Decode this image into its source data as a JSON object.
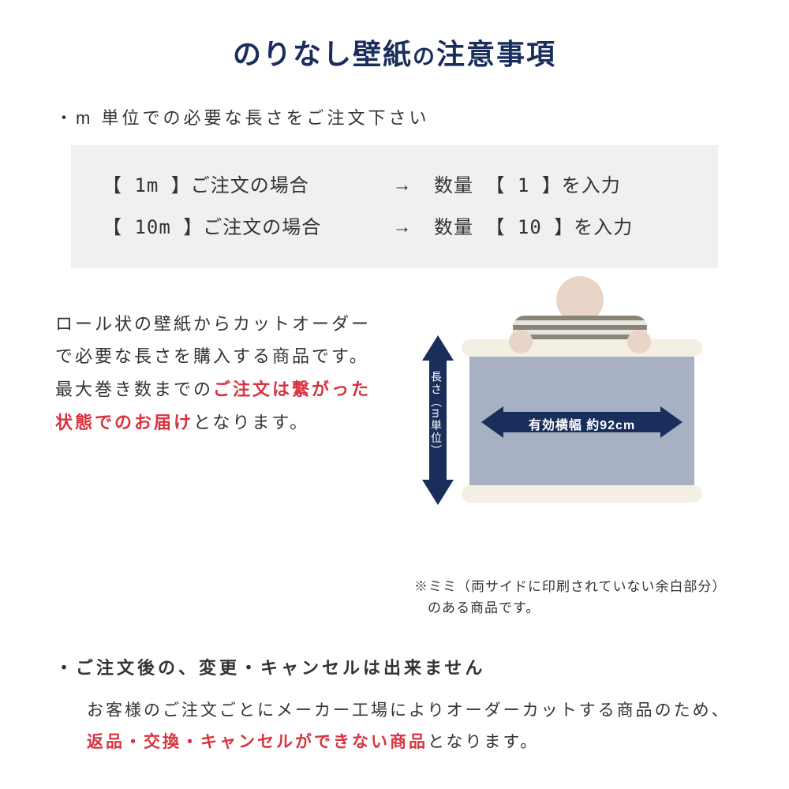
{
  "colors": {
    "title": "#1a2e5c",
    "text": "#333333",
    "accent_red": "#d9333f",
    "example_bg": "#f0f0f0",
    "arrow": "#1a2e5c",
    "arrow_text": "#ffffff",
    "wallpaper_sheet": "#a8b0c4",
    "roll": "#f4efe3"
  },
  "title": {
    "main": "のりなし壁紙",
    "connector": "の",
    "suffix": "注意事項"
  },
  "bullet1": "・m 単位での必要な長さをご注文下さい",
  "examples": [
    {
      "left": "【 1m 】ご注文の場合",
      "arrow": "→",
      "right": "数量 【 1 】を入力"
    },
    {
      "left": "【 10m 】ご注文の場合",
      "arrow": "→",
      "right": "数量 【 10 】を入力"
    }
  ],
  "middle": {
    "line1": "ロール状の壁紙からカットオーダーで必要な長さを購入する商品です。最大巻き数までの",
    "red": "ご注文は繋がった状態でのお届け",
    "line2": "となります。"
  },
  "diagram": {
    "vertical_label": "長さ︵m単位︶",
    "horizontal_label": "有効横幅 約92cm"
  },
  "mimi_note": "※ミミ（両サイドに印刷されていない余白部分）のある商品です。",
  "bullet2": "・ご注文後の、変更・キャンセルは出来ません",
  "cancel_body": {
    "part1": "お客様のご注文ごとにメーカー工場によりオーダーカットする商品のため、",
    "red": "返品・交換・キャンセルができない商品",
    "part2": "となります。"
  }
}
